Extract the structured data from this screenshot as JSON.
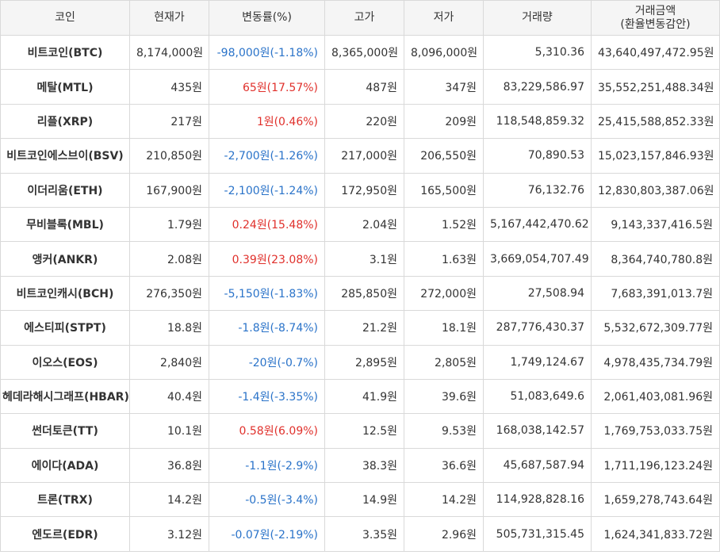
{
  "headers": {
    "coin": "코인",
    "price": "현재가",
    "change": "변동률(%)",
    "high": "고가",
    "low": "저가",
    "volume": "거래량",
    "amount_line1": "거래금액",
    "amount_line2": "(환율변동감안)"
  },
  "colors": {
    "up": "#e0302b",
    "down": "#2a73c9"
  },
  "rows": [
    {
      "coin": "비트코인(BTC)",
      "price": "8,174,000원",
      "change": "-98,000원(-1.18%)",
      "dir": "down",
      "high": "8,365,000원",
      "low": "8,096,000원",
      "volume": "5,310.36",
      "amount": "43,640,497,472.95원"
    },
    {
      "coin": "메탈(MTL)",
      "price": "435원",
      "change": "65원(17.57%)",
      "dir": "up",
      "high": "487원",
      "low": "347원",
      "volume": "83,229,586.97",
      "amount": "35,552,251,488.34원"
    },
    {
      "coin": "리플(XRP)",
      "price": "217원",
      "change": "1원(0.46%)",
      "dir": "up",
      "high": "220원",
      "low": "209원",
      "volume": "118,548,859.32",
      "amount": "25,415,588,852.33원"
    },
    {
      "coin": "비트코인에스브이(BSV)",
      "price": "210,850원",
      "change": "-2,700원(-1.26%)",
      "dir": "down",
      "high": "217,000원",
      "low": "206,550원",
      "volume": "70,890.53",
      "amount": "15,023,157,846.93원"
    },
    {
      "coin": "이더리움(ETH)",
      "price": "167,900원",
      "change": "-2,100원(-1.24%)",
      "dir": "down",
      "high": "172,950원",
      "low": "165,500원",
      "volume": "76,132.76",
      "amount": "12,830,803,387.06원"
    },
    {
      "coin": "무비블록(MBL)",
      "price": "1.79원",
      "change": "0.24원(15.48%)",
      "dir": "up",
      "high": "2.04원",
      "low": "1.52원",
      "volume": "5,167,442,470.62",
      "amount": "9,143,337,416.5원"
    },
    {
      "coin": "앵커(ANKR)",
      "price": "2.08원",
      "change": "0.39원(23.08%)",
      "dir": "up",
      "high": "3.1원",
      "low": "1.63원",
      "volume": "3,669,054,707.49",
      "amount": "8,364,740,780.8원"
    },
    {
      "coin": "비트코인캐시(BCH)",
      "price": "276,350원",
      "change": "-5,150원(-1.83%)",
      "dir": "down",
      "high": "285,850원",
      "low": "272,000원",
      "volume": "27,508.94",
      "amount": "7,683,391,013.7원"
    },
    {
      "coin": "에스티피(STPT)",
      "price": "18.8원",
      "change": "-1.8원(-8.74%)",
      "dir": "down",
      "high": "21.2원",
      "low": "18.1원",
      "volume": "287,776,430.37",
      "amount": "5,532,672,309.77원"
    },
    {
      "coin": "이오스(EOS)",
      "price": "2,840원",
      "change": "-20원(-0.7%)",
      "dir": "down",
      "high": "2,895원",
      "low": "2,805원",
      "volume": "1,749,124.67",
      "amount": "4,978,435,734.79원"
    },
    {
      "coin": "헤데라해시그래프(HBAR)",
      "price": "40.4원",
      "change": "-1.4원(-3.35%)",
      "dir": "down",
      "high": "41.9원",
      "low": "39.6원",
      "volume": "51,083,649.6",
      "amount": "2,061,403,081.96원"
    },
    {
      "coin": "썬더토큰(TT)",
      "price": "10.1원",
      "change": "0.58원(6.09%)",
      "dir": "up",
      "high": "12.5원",
      "low": "9.53원",
      "volume": "168,038,142.57",
      "amount": "1,769,753,033.75원"
    },
    {
      "coin": "에이다(ADA)",
      "price": "36.8원",
      "change": "-1.1원(-2.9%)",
      "dir": "down",
      "high": "38.3원",
      "low": "36.6원",
      "volume": "45,687,587.94",
      "amount": "1,711,196,123.24원"
    },
    {
      "coin": "트론(TRX)",
      "price": "14.2원",
      "change": "-0.5원(-3.4%)",
      "dir": "down",
      "high": "14.9원",
      "low": "14.2원",
      "volume": "114,928,828.16",
      "amount": "1,659,278,743.64원"
    },
    {
      "coin": "엔도르(EDR)",
      "price": "3.12원",
      "change": "-0.07원(-2.19%)",
      "dir": "down",
      "high": "3.35원",
      "low": "2.96원",
      "volume": "505,731,315.45",
      "amount": "1,624,341,833.72원"
    }
  ]
}
